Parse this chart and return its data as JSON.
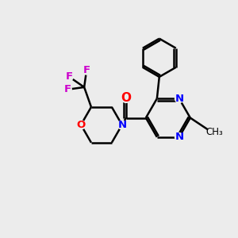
{
  "background_color": "#ececec",
  "bond_color": "#000000",
  "N_color": "#0000ff",
  "O_color": "#ff0000",
  "F_color": "#cc00cc",
  "line_width": 1.8,
  "figsize": [
    3.0,
    3.0
  ],
  "dpi": 100,
  "xlim": [
    0,
    10
  ],
  "ylim": [
    0,
    10
  ]
}
